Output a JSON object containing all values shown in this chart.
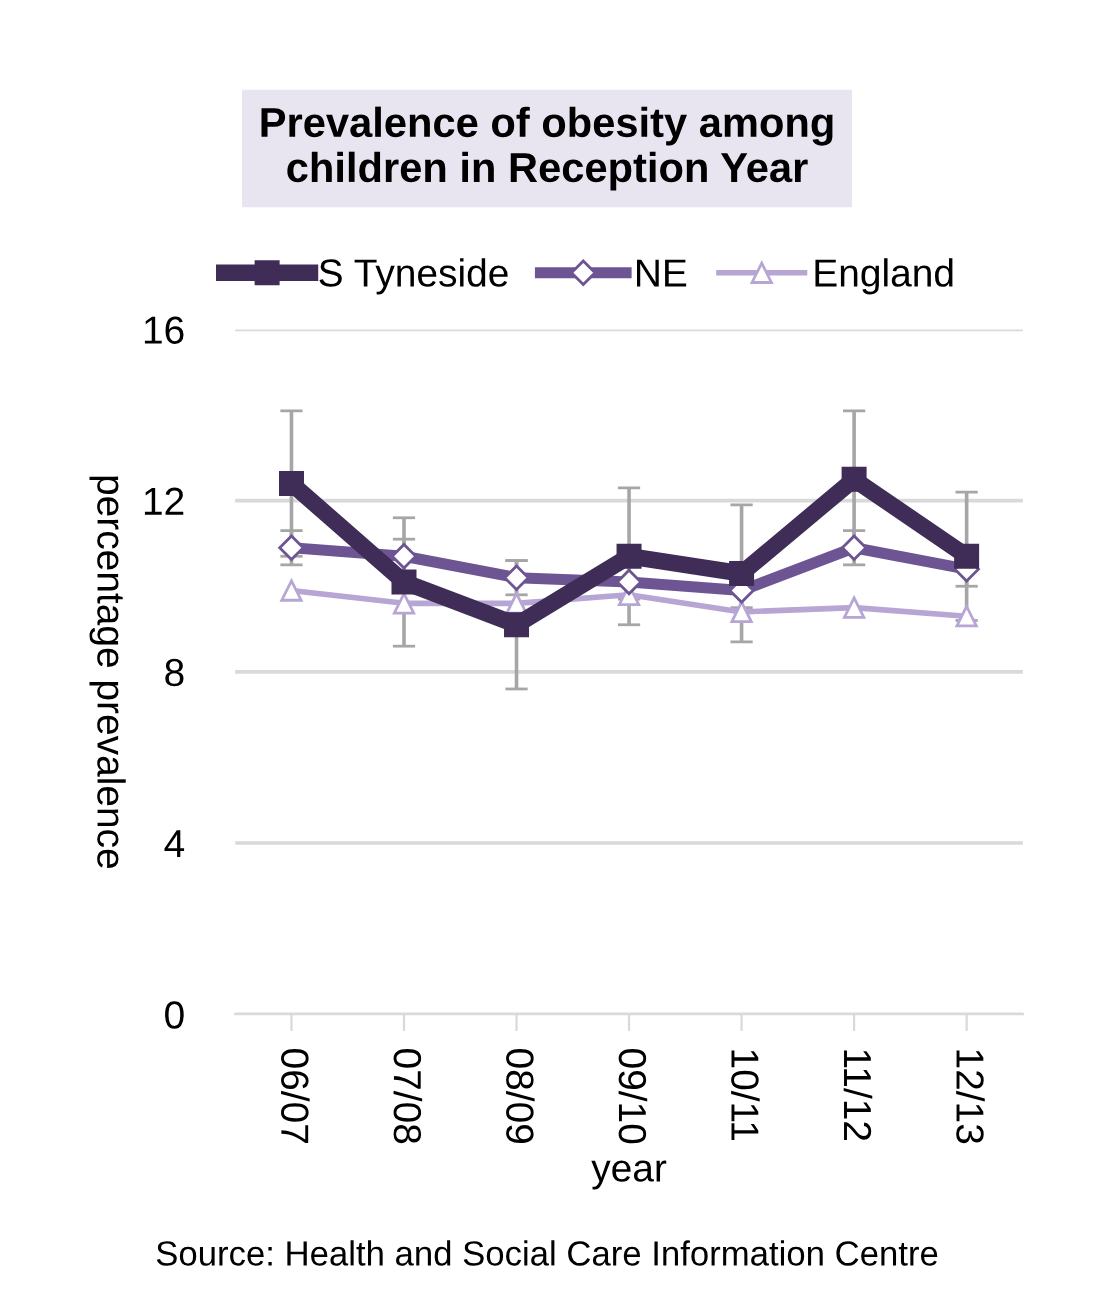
{
  "chart_data": {
    "type": "line",
    "title": "Prevalence of obesity among\nchildren in Reception Year",
    "xlabel": "year",
    "ylabel": "percentage prevalence",
    "categories": [
      "06/07",
      "07/08",
      "08/09",
      "09/10",
      "10/11",
      "11/12",
      "12/13"
    ],
    "series": [
      {
        "name": "S Tyneside",
        "color": "#3f2d57",
        "marker": "square",
        "values": [
          12.4,
          10.1,
          9.1,
          10.7,
          10.3,
          12.5,
          10.7
        ],
        "errors": [
          1.7,
          1.5,
          1.5,
          1.6,
          1.6,
          1.6,
          1.5
        ]
      },
      {
        "name": "NE",
        "color": "#6c5592",
        "marker": "diamond",
        "values": [
          10.9,
          10.7,
          10.2,
          10.1,
          9.9,
          10.9,
          10.4
        ],
        "errors": [
          0.4,
          0.4,
          0.4,
          0.4,
          0.4,
          0.4,
          0.4
        ]
      },
      {
        "name": "England",
        "color": "#b7a6d4",
        "marker": "triangle",
        "values": [
          9.9,
          9.6,
          9.6,
          9.8,
          9.4,
          9.5,
          9.3
        ]
      }
    ],
    "ylim": [
      0,
      16
    ],
    "yticks": [
      0,
      4,
      8,
      12,
      16
    ],
    "grid": "y",
    "legend": "top",
    "line_style": "solid",
    "annotations": [
      "Source: Health and Social Care Information Centre"
    ]
  }
}
